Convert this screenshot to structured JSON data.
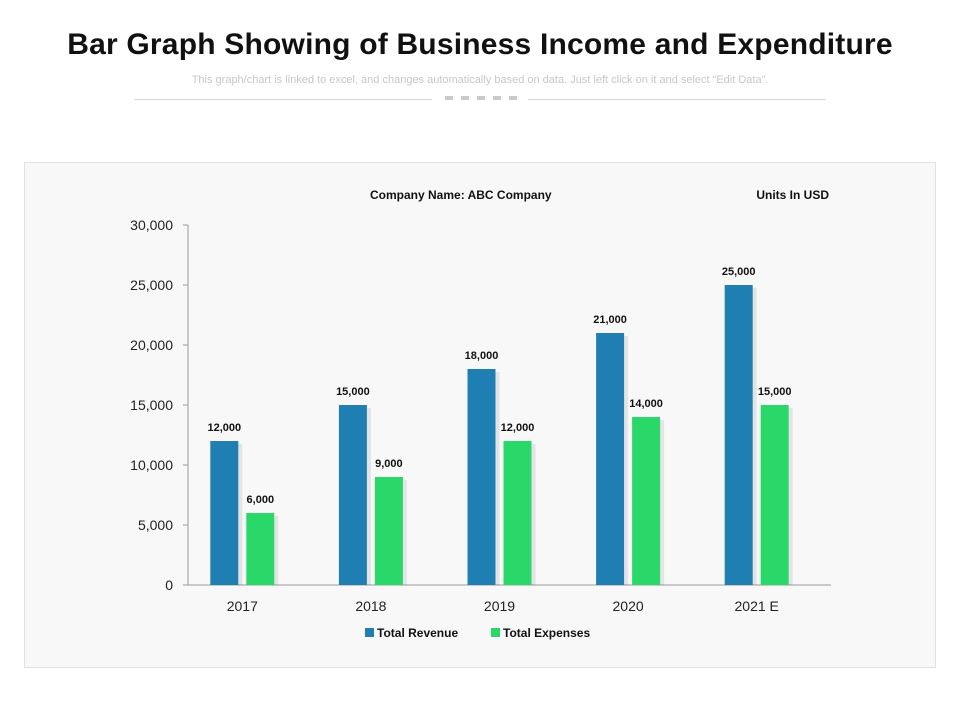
{
  "header": {
    "title": "Bar Graph Showing of Business Income and Expenditure",
    "subtitle": "This graph/chart is linked to excel, and changes automatically based on data. Just left click on it and select “Edit Data”."
  },
  "colors": {
    "revenue": "#1f7fb3",
    "expenses": "#2ad86a",
    "axis": "#9a9a9a",
    "text": "#111111",
    "panel_bg": "#f8f8f8"
  },
  "chart_data": {
    "type": "bar",
    "company_label": "Company Name: ABC Company",
    "units_label": "Units In USD",
    "categories": [
      "2017",
      "2018",
      "2019",
      "2020",
      "2021 E"
    ],
    "series": [
      {
        "name": "Total Revenue",
        "values": [
          12000,
          15000,
          18000,
          21000,
          25000
        ],
        "value_labels": [
          "12,000",
          "15,000",
          "18,000",
          "21,000",
          "25,000"
        ]
      },
      {
        "name": "Total Expenses",
        "values": [
          6000,
          9000,
          12000,
          14000,
          15000
        ],
        "value_labels": [
          "6,000",
          "9,000",
          "12,000",
          "14,000",
          "15,000"
        ]
      }
    ],
    "ylim": [
      0,
      30000
    ],
    "yticks": [
      0,
      5000,
      10000,
      15000,
      20000,
      25000,
      30000
    ],
    "ytick_labels": [
      "0",
      "5,000",
      "10,000",
      "15,000",
      "20,000",
      "25,000",
      "30,000"
    ],
    "legend_position": "bottom-center",
    "grid": false
  }
}
